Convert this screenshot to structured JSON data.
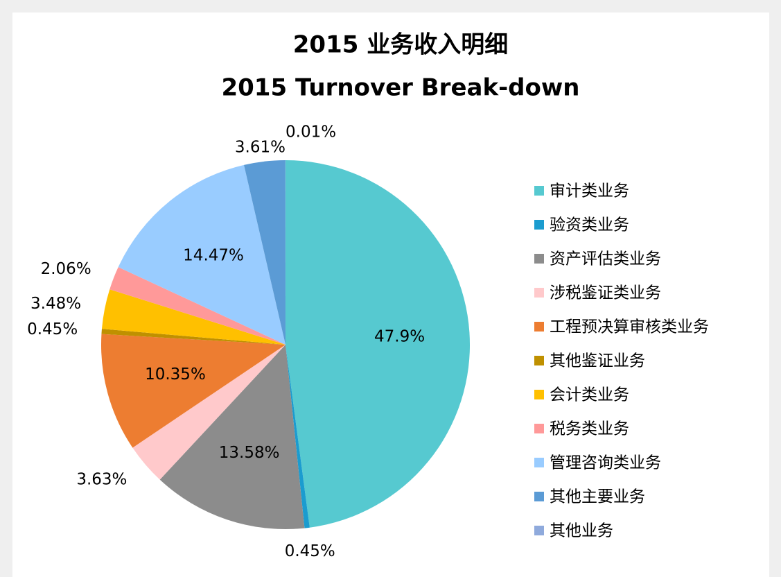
{
  "chart_data": {
    "type": "pie",
    "title": "2015 业务收入明细",
    "subtitle": "2015 Turnover Break-down",
    "categories": [
      "审计类业务",
      "验资类业务",
      "资产评估类业务",
      "涉税鉴证类业务",
      "工程预决算审核类业务",
      "其他鉴证业务",
      "会计类业务",
      "税务类业务",
      "管理咨询类业务",
      "其他主要业务",
      "其他业务"
    ],
    "values": [
      47.9,
      0.45,
      13.58,
      3.63,
      10.35,
      0.45,
      3.48,
      2.06,
      14.47,
      3.61,
      0.01
    ],
    "value_labels": [
      "47.9%",
      "0.45%",
      "13.58%",
      "3.63%",
      "10.35%",
      "0.45%",
      "3.48%",
      "2.06%",
      "14.47%",
      "3.61%",
      "0.01%"
    ],
    "colors": [
      "#56c9d0",
      "#1b9ccf",
      "#8c8c8c",
      "#ffc9cb",
      "#ed7d31",
      "#bf9000",
      "#ffc000",
      "#ff9999",
      "#99ccff",
      "#5b9bd5",
      "#8faadc"
    ],
    "legend": "right"
  }
}
